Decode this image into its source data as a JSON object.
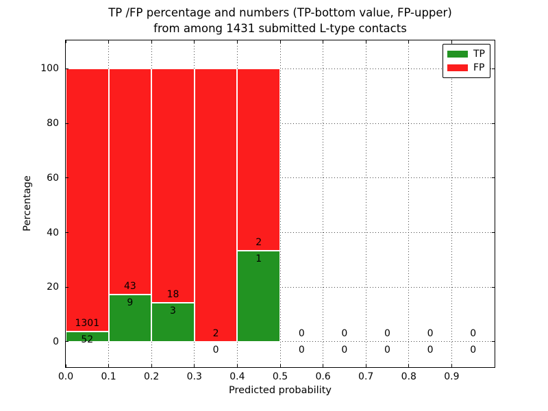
{
  "figure": {
    "title_line1": "TP /FP percentage and numbers (TP-bottom value, FP-upper)",
    "title_line2": "from among 1431 submitted L-type contacts"
  },
  "chart_data": {
    "type": "bar",
    "stacked": true,
    "title": "TP /FP percentage and numbers (TP-bottom value, FP-upper) from among 1431 submitted L-type contacts",
    "xlabel": "Predicted probability",
    "ylabel": "Percentage",
    "total_submitted": 1431,
    "xlim": [
      0.0,
      1.0
    ],
    "ylim": [
      -9.3,
      110.4
    ],
    "grid": "dotted",
    "x_ticks": [
      0.0,
      0.1,
      0.2,
      0.3,
      0.4,
      0.5,
      0.6,
      0.7,
      0.8,
      0.9
    ],
    "x_tick_labels": [
      "0.0",
      "0.1",
      "0.2",
      "0.3",
      "0.4",
      "0.5",
      "0.6",
      "0.7",
      "0.8",
      "0.9"
    ],
    "y_ticks": [
      0,
      20,
      40,
      60,
      80,
      100
    ],
    "y_tick_labels": [
      "0",
      "20",
      "40",
      "60",
      "80",
      "100"
    ],
    "legend_position": "upper right",
    "series": [
      {
        "name": "TP",
        "color": "#229322",
        "values": [
          52,
          9,
          3,
          0,
          1,
          0,
          0,
          0,
          0,
          0
        ]
      },
      {
        "name": "FP",
        "color": "#fc1d1d",
        "values": [
          1301,
          43,
          18,
          2,
          2,
          0,
          0,
          0,
          0,
          0
        ]
      }
    ],
    "bins": [
      {
        "x_start": 0.0,
        "x_end": 0.1,
        "tp": 52,
        "fp": 1301,
        "tp_pct": 3.84,
        "fp_pct": 96.16
      },
      {
        "x_start": 0.1,
        "x_end": 0.2,
        "tp": 9,
        "fp": 43,
        "tp_pct": 17.31,
        "fp_pct": 82.69
      },
      {
        "x_start": 0.2,
        "x_end": 0.3,
        "tp": 3,
        "fp": 18,
        "tp_pct": 14.29,
        "fp_pct": 85.71
      },
      {
        "x_start": 0.3,
        "x_end": 0.4,
        "tp": 0,
        "fp": 2,
        "tp_pct": 0.0,
        "fp_pct": 100.0
      },
      {
        "x_start": 0.4,
        "x_end": 0.5,
        "tp": 1,
        "fp": 2,
        "tp_pct": 33.33,
        "fp_pct": 66.67
      },
      {
        "x_start": 0.5,
        "x_end": 0.6,
        "tp": 0,
        "fp": 0,
        "tp_pct": 0.0,
        "fp_pct": 0.0
      },
      {
        "x_start": 0.6,
        "x_end": 0.7,
        "tp": 0,
        "fp": 0,
        "tp_pct": 0.0,
        "fp_pct": 0.0
      },
      {
        "x_start": 0.7,
        "x_end": 0.8,
        "tp": 0,
        "fp": 0,
        "tp_pct": 0.0,
        "fp_pct": 0.0
      },
      {
        "x_start": 0.8,
        "x_end": 0.9,
        "tp": 0,
        "fp": 0,
        "tp_pct": 0.0,
        "fp_pct": 0.0
      },
      {
        "x_start": 0.9,
        "x_end": 1.0,
        "tp": 0,
        "fp": 0,
        "tp_pct": 0.0,
        "fp_pct": 0.0
      }
    ],
    "bar_label_offset_pct": 3,
    "colors": {
      "tp": "#229322",
      "fp": "#fc1d1d",
      "bar_edge": "#ffffff",
      "grid": "#000000"
    }
  }
}
